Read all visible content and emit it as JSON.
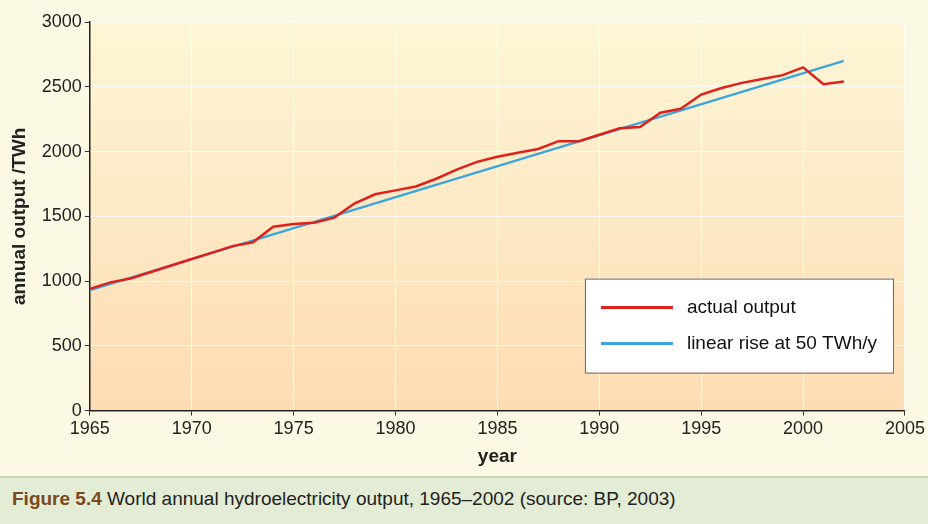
{
  "chart_data": {
    "type": "line",
    "title": "Figure 5.4 World annual hydroelectricity output, 1965–2002 (source: BP, 2003)",
    "x_label": "year",
    "y_label": "annual output /TWh",
    "series": [
      {
        "name": "actual output",
        "color": "#e0201b",
        "x": [
          1965,
          1966,
          1967,
          1968,
          1969,
          1970,
          1971,
          1972,
          1973,
          1974,
          1975,
          1976,
          1977,
          1978,
          1979,
          1980,
          1981,
          1982,
          1983,
          1984,
          1985,
          1986,
          1987,
          1988,
          1989,
          1990,
          1991,
          1992,
          1993,
          1994,
          1995,
          1996,
          1997,
          1998,
          1999,
          2000,
          2001,
          2002
        ],
        "values": [
          940,
          990,
          1020,
          1070,
          1120,
          1170,
          1220,
          1270,
          1300,
          1420,
          1440,
          1450,
          1490,
          1600,
          1670,
          1700,
          1730,
          1790,
          1860,
          1920,
          1960,
          1990,
          2020,
          2080,
          2080,
          2130,
          2180,
          2190,
          2300,
          2330,
          2440,
          2490,
          2530,
          2560,
          2590,
          2650,
          2520,
          2540
        ]
      },
      {
        "name": "linear rise at 50 TWh/y",
        "color": "#3ba6dc",
        "x": [
          1965,
          2002
        ],
        "values": [
          930,
          2700
        ]
      }
    ],
    "xlim": [
      1965,
      2005
    ],
    "xticks": [
      1965,
      1970,
      1975,
      1980,
      1985,
      1990,
      1995,
      2000,
      2005
    ],
    "ylim": [
      0,
      3000
    ],
    "yticks": [
      0,
      500,
      1000,
      1500,
      2000,
      2500,
      3000
    ],
    "grid": true,
    "legend": "lower right"
  }
}
